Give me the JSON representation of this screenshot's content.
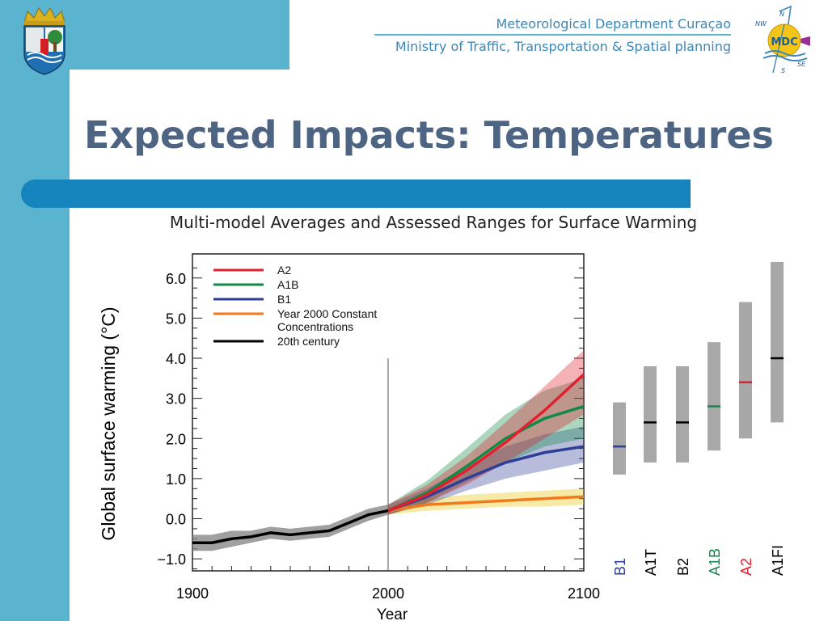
{
  "header": {
    "department": "Meteorological Department Curaçao",
    "ministry": "Ministry of Traffic, Transportation & Spatial planning",
    "logo_text": "MDC",
    "compass": {
      "n": "N",
      "nw": "NW",
      "se": "SE",
      "s": "S"
    }
  },
  "slide": {
    "title": "Expected Impacts: Temperatures"
  },
  "colors": {
    "frame": "#5ab3cf",
    "bar": "#1685bd",
    "title": "#4d6483",
    "department_text": "#3b86b6"
  },
  "chart_data": {
    "type": "line",
    "title": "Multi-model Averages and Assessed Ranges for Surface Warming",
    "xlabel": "Year",
    "ylabel": "Global surface warming (°C)",
    "xlim": [
      1900,
      2100
    ],
    "ylim": [
      -1.3,
      6.6
    ],
    "xticks": [
      "1900",
      "2000",
      "2100"
    ],
    "yticks": [
      {
        "value": 6,
        "label": "6.0"
      },
      {
        "value": 5,
        "label": "5.0"
      },
      {
        "value": 4,
        "label": "4.0"
      },
      {
        "value": 3,
        "label": "3.0"
      },
      {
        "value": 2,
        "label": "2.0"
      },
      {
        "value": 1,
        "label": "1.0"
      },
      {
        "value": 0,
        "label": "0.0"
      },
      {
        "value": -1,
        "label": "−1.0"
      }
    ],
    "grid": false,
    "legend_position": "top-left",
    "divider_year": 2000,
    "series": [
      {
        "name": "A2",
        "color": "#e0202f",
        "x": [
          2000,
          2020,
          2040,
          2060,
          2080,
          2100
        ],
        "y": [
          0.2,
          0.6,
          1.2,
          1.9,
          2.7,
          3.6
        ],
        "band_low": [
          0.1,
          0.4,
          0.85,
          1.4,
          2.0,
          2.6
        ],
        "band_high": [
          0.35,
          0.85,
          1.55,
          2.4,
          3.3,
          4.2
        ]
      },
      {
        "name": "A1B",
        "color": "#108a46",
        "x": [
          2000,
          2020,
          2040,
          2060,
          2080,
          2100
        ],
        "y": [
          0.2,
          0.65,
          1.3,
          2.0,
          2.5,
          2.8
        ],
        "band_low": [
          0.1,
          0.4,
          0.9,
          1.4,
          1.8,
          2.0
        ],
        "band_high": [
          0.35,
          0.95,
          1.75,
          2.6,
          3.2,
          3.5
        ]
      },
      {
        "name": "B1",
        "color": "#2e3e96",
        "x": [
          2000,
          2020,
          2040,
          2060,
          2080,
          2100
        ],
        "y": [
          0.2,
          0.55,
          1.0,
          1.4,
          1.65,
          1.8
        ],
        "band_low": [
          0.1,
          0.35,
          0.7,
          1.0,
          1.2,
          1.4
        ],
        "band_high": [
          0.35,
          0.75,
          1.3,
          1.8,
          2.1,
          2.3
        ]
      },
      {
        "name": "Year 2000 Constant\nConcentrations",
        "color": "#f07a1c",
        "x": [
          2000,
          2020,
          2040,
          2060,
          2080,
          2100
        ],
        "y": [
          0.2,
          0.35,
          0.4,
          0.45,
          0.5,
          0.55
        ],
        "band_low": [
          0.1,
          0.2,
          0.25,
          0.3,
          0.3,
          0.35
        ],
        "band_high": [
          0.3,
          0.5,
          0.6,
          0.65,
          0.7,
          0.75
        ]
      },
      {
        "name": "20th century",
        "color": "#000000",
        "x": [
          1900,
          1910,
          1920,
          1930,
          1940,
          1950,
          1960,
          1970,
          1980,
          1990,
          2000
        ],
        "y": [
          -0.6,
          -0.6,
          -0.5,
          -0.45,
          -0.35,
          -0.4,
          -0.35,
          -0.3,
          -0.1,
          0.1,
          0.2
        ],
        "band_low": [
          -0.8,
          -0.8,
          -0.7,
          -0.6,
          -0.5,
          -0.55,
          -0.5,
          -0.45,
          -0.25,
          -0.05,
          0.1
        ],
        "band_high": [
          -0.4,
          -0.4,
          -0.3,
          -0.3,
          -0.2,
          -0.25,
          -0.2,
          -0.15,
          0.05,
          0.25,
          0.35
        ]
      }
    ],
    "ranges": [
      {
        "scenario": "B1",
        "low": 1.1,
        "high": 2.9,
        "best": 1.8,
        "color": "#2e3e96"
      },
      {
        "scenario": "A1T",
        "low": 1.4,
        "high": 3.8,
        "best": 2.4,
        "color": "#000000"
      },
      {
        "scenario": "B2",
        "low": 1.4,
        "high": 3.8,
        "best": 2.4,
        "color": "#000000"
      },
      {
        "scenario": "A1B",
        "low": 1.7,
        "high": 4.4,
        "best": 2.8,
        "color": "#108a46"
      },
      {
        "scenario": "A2",
        "low": 2.0,
        "high": 5.4,
        "best": 3.4,
        "color": "#e0202f"
      },
      {
        "scenario": "A1FI",
        "low": 2.4,
        "high": 6.4,
        "best": 4.0,
        "color": "#000000"
      }
    ]
  }
}
